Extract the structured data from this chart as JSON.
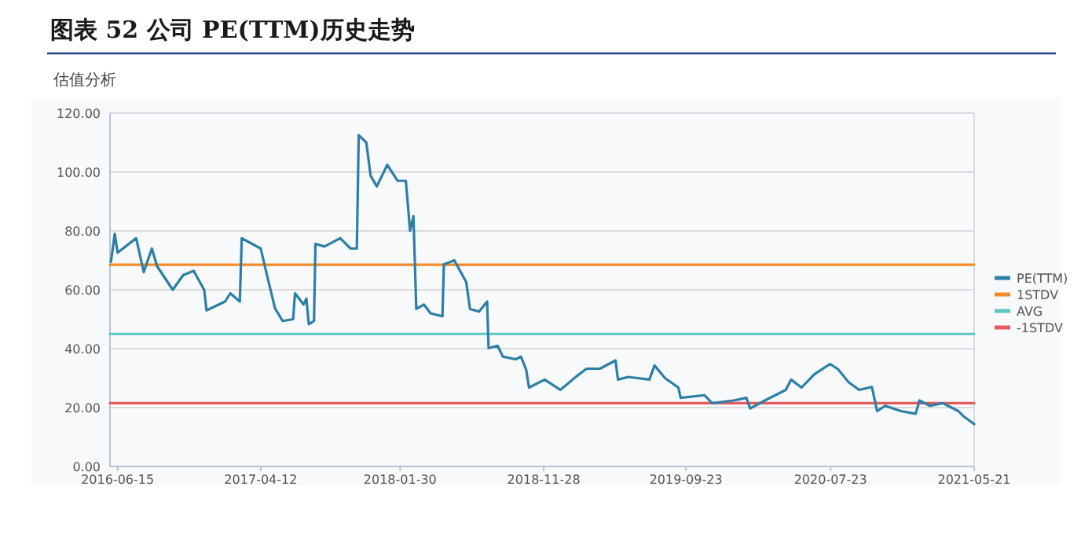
{
  "chart_data": {
    "type": "line",
    "title": "图表 52  公司 PE(TTM)历史走势",
    "subtitle": "估值分析",
    "xlim": [
      "2016-05-30",
      "2021-05-21"
    ],
    "xticks": [
      "2016-06-15",
      "2017-04-12",
      "2018-01-30",
      "2018-11-28",
      "2019-09-23",
      "2020-07-23",
      "2021-05-21"
    ],
    "ylim": [
      0,
      120
    ],
    "yticks": [
      {
        "value": 0,
        "label": "0.00"
      },
      {
        "value": 20,
        "label": "20.00"
      },
      {
        "value": 40,
        "label": "40.00"
      },
      {
        "value": 60,
        "label": "60.00"
      },
      {
        "value": 80,
        "label": "80.00"
      },
      {
        "value": 100,
        "label": "100.00"
      },
      {
        "value": 120,
        "label": "120.00"
      }
    ],
    "grid": "y",
    "legend": "right",
    "series": [
      {
        "name": "PE(TTM)",
        "color": "#2e7ea6",
        "x": [
          "2016-06-01",
          "2016-06-09",
          "2016-06-15",
          "2016-07-24",
          "2016-08-09",
          "2016-08-26",
          "2016-09-06",
          "2016-10-09",
          "2016-10-31",
          "2016-11-22",
          "2016-12-14",
          "2016-12-19",
          "2017-01-27",
          "2017-02-07",
          "2017-02-27",
          "2017-03-03",
          "2017-04-12",
          "2017-04-25",
          "2017-05-12",
          "2017-05-28",
          "2017-06-19",
          "2017-06-23",
          "2017-07-11",
          "2017-07-17",
          "2017-07-22",
          "2017-08-02",
          "2017-08-05",
          "2017-08-24",
          "2017-09-26",
          "2017-10-18",
          "2017-10-31",
          "2017-11-04",
          "2017-11-20",
          "2017-11-29",
          "2017-12-12",
          "2018-01-03",
          "2018-01-25",
          "2018-02-11",
          "2018-02-20",
          "2018-02-27",
          "2018-03-05",
          "2018-03-21",
          "2018-04-04",
          "2018-04-29",
          "2018-05-02",
          "2018-05-24",
          "2018-06-18",
          "2018-06-26",
          "2018-07-15",
          "2018-08-01",
          "2018-08-04",
          "2018-08-23",
          "2018-09-03",
          "2018-09-30",
          "2018-10-11",
          "2018-10-22",
          "2018-10-28",
          "2018-11-30",
          "2019-01-02",
          "2019-02-04",
          "2019-02-26",
          "2019-03-26",
          "2019-04-28",
          "2019-05-03",
          "2019-05-25",
          "2019-07-08",
          "2019-07-19",
          "2019-08-10",
          "2019-09-07",
          "2019-09-12",
          "2019-11-01",
          "2019-11-17",
          "2020-01-01",
          "2020-01-28",
          "2020-02-05",
          "2020-03-07",
          "2020-04-20",
          "2020-05-01",
          "2020-05-23",
          "2020-06-19",
          "2020-07-22",
          "2020-08-08",
          "2020-08-30",
          "2020-09-21",
          "2020-10-18",
          "2020-10-29",
          "2020-11-15",
          "2020-12-18",
          "2021-01-18",
          "2021-01-26",
          "2021-02-17",
          "2021-03-16",
          "2021-04-18",
          "2021-04-29",
          "2021-05-21"
        ],
        "values": [
          69.5,
          79,
          72.6,
          77.5,
          66,
          74,
          68,
          60,
          65,
          66.4,
          60,
          53,
          56,
          58.8,
          56,
          77.5,
          74,
          65,
          53.7,
          49.4,
          50,
          58.8,
          55,
          57,
          48.3,
          49.4,
          75.6,
          74.7,
          77.5,
          74,
          74,
          112.5,
          110,
          98.7,
          95.1,
          102.4,
          97,
          97,
          80,
          85,
          53.5,
          55,
          52,
          51,
          68.6,
          70,
          62.6,
          53.5,
          52.6,
          56,
          40.2,
          41,
          37.3,
          36.4,
          37.3,
          32.9,
          26.8,
          29.5,
          26,
          30.5,
          33.2,
          33.2,
          36,
          29.5,
          30.4,
          29.5,
          34.3,
          30,
          26.8,
          23.3,
          24.2,
          21.5,
          22.4,
          23.3,
          19.7,
          22.4,
          26,
          29.5,
          26.8,
          31.3,
          34.8,
          33,
          28.6,
          26,
          27,
          18.8,
          20.6,
          18.8,
          17.9,
          22.4,
          20.6,
          21.5,
          18.8,
          17,
          14.4
        ]
      },
      {
        "name": "1STDV",
        "color": "#f58a2a",
        "x": [
          "2016-05-30",
          "2021-05-21"
        ],
        "values": [
          68.5,
          68.5
        ]
      },
      {
        "name": "AVG",
        "color": "#5cc6c6",
        "x": [
          "2016-05-30",
          "2021-05-21"
        ],
        "values": [
          45,
          45
        ]
      },
      {
        "name": "-1STDV",
        "color": "#e65a5c",
        "x": [
          "2016-05-30",
          "2021-05-21"
        ],
        "values": [
          21.5,
          21.5
        ]
      }
    ]
  }
}
